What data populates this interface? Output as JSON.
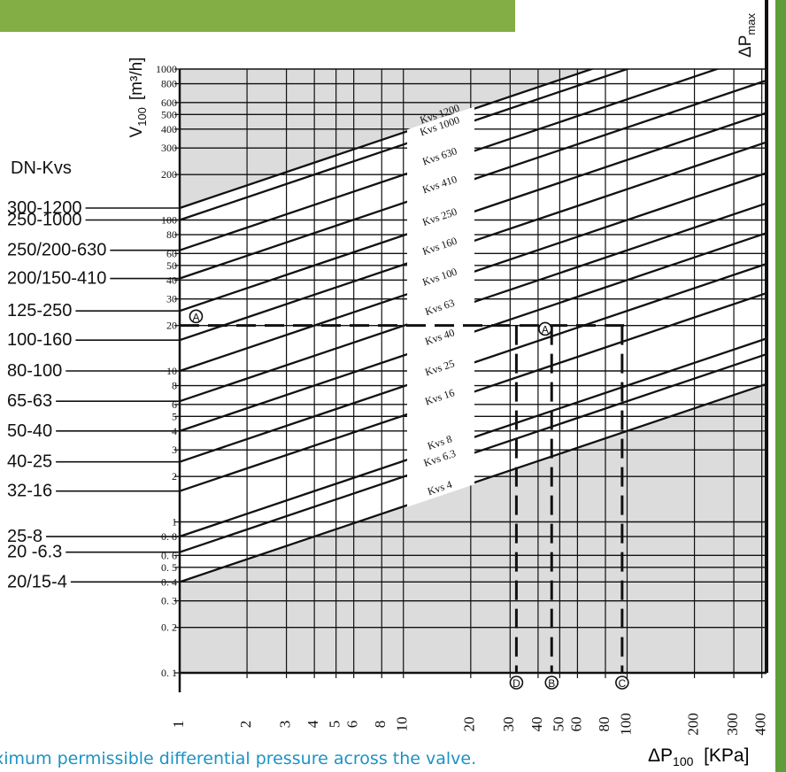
{
  "colors": {
    "header_bar": "#83ad45",
    "right_bar": "#5e9d3a",
    "shaded_region": "#dcdcdc",
    "line": "#111111",
    "caption_text": "#1c93c4"
  },
  "caption": "ximum permissible differential pressure across the valve.",
  "chart_data": {
    "type": "line",
    "x_axis": {
      "label_symbol": "ΔP",
      "label_sub": "100",
      "label_unit": "[KPa]",
      "scale": "log",
      "range": [
        1,
        420
      ],
      "ticks": [
        1,
        2,
        3,
        4,
        5,
        6,
        8,
        10,
        20,
        30,
        40,
        50,
        60,
        80,
        100,
        200,
        300,
        400
      ],
      "tick_labels": [
        "1",
        "2",
        "3",
        "4",
        "5",
        "6",
        "8",
        "10",
        "20",
        "30",
        "40",
        "50",
        "60",
        "80",
        "100",
        "200",
        "300",
        "400"
      ]
    },
    "y_axis": {
      "label_symbol": "V",
      "label_sub": "100",
      "label_unit": "[m³/h]",
      "scale": "log",
      "range": [
        0.1,
        1000
      ],
      "ticks": [
        0.1,
        0.2,
        0.3,
        0.4,
        0.5,
        0.6,
        0.8,
        1,
        2,
        3,
        4,
        5,
        6,
        8,
        10,
        20,
        30,
        40,
        50,
        60,
        80,
        100,
        200,
        300,
        400,
        500,
        600,
        800,
        1000
      ],
      "tick_labels": [
        "0. 1",
        "0. 2",
        "0. 3",
        "0. 4",
        "0. 5",
        "0. 6",
        "0. 8",
        "1",
        "2",
        "3",
        "4",
        "5",
        "6",
        "8",
        "10",
        "20",
        "30",
        "40",
        "50",
        "60",
        "80",
        "100",
        "200",
        "300",
        "400",
        "500",
        "600",
        "800",
        "1000"
      ]
    },
    "right_label": {
      "symbol": "ΔP",
      "sub": "max"
    },
    "series": [
      {
        "name": "Kvs 4",
        "kvs": 4
      },
      {
        "name": "Kvs 6.3",
        "kvs": 6.3
      },
      {
        "name": "Kvs 8",
        "kvs": 8
      },
      {
        "name": "Kvs 16",
        "kvs": 16
      },
      {
        "name": "Kvs 25",
        "kvs": 25
      },
      {
        "name": "Kvs 40",
        "kvs": 40
      },
      {
        "name": "Kvs 63",
        "kvs": 63
      },
      {
        "name": "Kvs 100",
        "kvs": 100
      },
      {
        "name": "Kvs 160",
        "kvs": 160
      },
      {
        "name": "Kvs 250",
        "kvs": 250
      },
      {
        "name": "Kvs 410",
        "kvs": 410
      },
      {
        "name": "Kvs 630",
        "kvs": 630
      },
      {
        "name": "Kvs 1000",
        "kvs": 1000
      },
      {
        "name": "Kvs 1200",
        "kvs": 1200
      }
    ],
    "dn_kvs_table": {
      "title": "DN-Kvs",
      "rows": [
        {
          "label": "300-1200",
          "flow": 120
        },
        {
          "label": "250-1000",
          "flow": 100
        },
        {
          "label": "250/200-630",
          "flow": 63
        },
        {
          "label": "200/150-410",
          "flow": 41
        },
        {
          "label": "125-250",
          "flow": 25
        },
        {
          "label": "100-160",
          "flow": 16
        },
        {
          "label": "80-100",
          "flow": 10
        },
        {
          "label": "65-63",
          "flow": 6.3
        },
        {
          "label": "50-40",
          "flow": 4
        },
        {
          "label": "40-25",
          "flow": 2.5
        },
        {
          "label": "32-16",
          "flow": 1.6
        },
        {
          "label": "25-8",
          "flow": 0.8
        },
        {
          "label": "20 -6.3",
          "flow": 0.63
        },
        {
          "label": "20/15-4",
          "flow": 0.4
        }
      ]
    },
    "annotations": {
      "horizontal_dashed": {
        "y": 20,
        "x_from": 1,
        "x_to": 100
      },
      "vertical_dashed": [
        {
          "label": "D",
          "x": 32
        },
        {
          "label": "B",
          "x": 46
        },
        {
          "label": "C",
          "x": 95
        }
      ],
      "markers": [
        {
          "label": "A",
          "x": 1.1,
          "y": 23
        },
        {
          "label": "A",
          "x": 40,
          "y": 19
        }
      ]
    }
  }
}
